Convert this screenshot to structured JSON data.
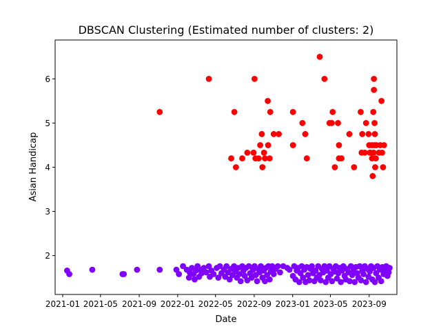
{
  "chart_data": {
    "type": "scatter",
    "title": "DBSCAN Clustering (Estimated number of clusters: 2)",
    "xlabel": "Date",
    "ylabel": "Asian Handicap",
    "xlim": [
      "2020-12-08",
      "2023-11-28"
    ],
    "ylim": [
      1.12,
      6.88
    ],
    "grid": false,
    "x_ticks": [
      "2021-01",
      "2021-05",
      "2021-09",
      "2022-01",
      "2022-05",
      "2022-09",
      "2023-01",
      "2023-05",
      "2023-09"
    ],
    "y_ticks": [
      2,
      3,
      4,
      5,
      6
    ],
    "colors": {
      "cluster_0": "#8000ff",
      "cluster_1": "#ff0000"
    },
    "series": [
      {
        "color": "#8000ff",
        "points": [
          [
            "2021-01-15",
            1.66
          ],
          [
            "2021-01-22",
            1.58
          ],
          [
            "2021-04-05",
            1.68
          ],
          [
            "2021-07-10",
            1.58
          ],
          [
            "2021-07-14",
            1.58
          ],
          [
            "2021-08-25",
            1.68
          ],
          [
            "2021-11-05",
            1.68
          ],
          [
            "2021-12-28",
            1.68
          ],
          [
            "2022-01-05",
            1.58
          ],
          [
            "2022-01-18",
            1.76
          ],
          [
            "2022-01-30",
            1.68
          ],
          [
            "2022-02-06",
            1.5
          ],
          [
            "2022-02-08",
            1.62
          ],
          [
            "2022-02-15",
            1.72
          ],
          [
            "2022-02-20",
            1.58
          ],
          [
            "2022-02-24",
            1.46
          ],
          [
            "2022-02-28",
            1.66
          ],
          [
            "2022-03-05",
            1.76
          ],
          [
            "2022-03-10",
            1.52
          ],
          [
            "2022-03-15",
            1.68
          ],
          [
            "2022-03-18",
            1.6
          ],
          [
            "2022-03-25",
            1.72
          ],
          [
            "2022-04-02",
            1.62
          ],
          [
            "2022-04-10",
            1.76
          ],
          [
            "2022-04-13",
            1.52
          ],
          [
            "2022-04-18",
            1.66
          ],
          [
            "2022-04-25",
            1.58
          ],
          [
            "2022-05-05",
            1.72
          ],
          [
            "2022-05-10",
            1.5
          ],
          [
            "2022-05-15",
            1.76
          ],
          [
            "2022-05-20",
            1.6
          ],
          [
            "2022-05-28",
            1.68
          ],
          [
            "2022-06-01",
            1.52
          ],
          [
            "2022-06-05",
            1.76
          ],
          [
            "2022-06-10",
            1.62
          ],
          [
            "2022-06-15",
            1.46
          ],
          [
            "2022-06-20",
            1.7
          ],
          [
            "2022-06-24",
            1.56
          ],
          [
            "2022-06-29",
            1.76
          ],
          [
            "2022-07-03",
            1.64
          ],
          [
            "2022-07-08",
            1.5
          ],
          [
            "2022-07-12",
            1.72
          ],
          [
            "2022-07-16",
            1.58
          ],
          [
            "2022-07-20",
            1.42
          ],
          [
            "2022-07-25",
            1.76
          ],
          [
            "2022-07-29",
            1.66
          ],
          [
            "2022-08-02",
            1.54
          ],
          [
            "2022-08-06",
            1.72
          ],
          [
            "2022-08-10",
            1.44
          ],
          [
            "2022-08-15",
            1.76
          ],
          [
            "2022-08-19",
            1.6
          ],
          [
            "2022-08-24",
            1.5
          ],
          [
            "2022-08-28",
            1.68
          ],
          [
            "2022-09-02",
            1.76
          ],
          [
            "2022-09-06",
            1.56
          ],
          [
            "2022-09-10",
            1.42
          ],
          [
            "2022-09-14",
            1.7
          ],
          [
            "2022-09-18",
            1.62
          ],
          [
            "2022-09-22",
            1.76
          ],
          [
            "2022-09-27",
            1.5
          ],
          [
            "2022-10-01",
            1.66
          ],
          [
            "2022-10-05",
            1.42
          ],
          [
            "2022-10-08",
            1.72
          ],
          [
            "2022-10-12",
            1.56
          ],
          [
            "2022-10-16",
            1.76
          ],
          [
            "2022-10-20",
            1.46
          ],
          [
            "2022-10-24",
            1.64
          ],
          [
            "2022-10-28",
            1.76
          ],
          [
            "2022-11-02",
            1.58
          ],
          [
            "2022-11-08",
            1.7
          ],
          [
            "2022-11-15",
            1.76
          ],
          [
            "2022-11-22",
            1.62
          ],
          [
            "2022-12-02",
            1.76
          ],
          [
            "2022-12-15",
            1.72
          ],
          [
            "2022-12-22",
            1.68
          ],
          [
            "2023-01-02",
            1.54
          ],
          [
            "2023-01-06",
            1.76
          ],
          [
            "2023-01-10",
            1.46
          ],
          [
            "2023-01-14",
            1.66
          ],
          [
            "2023-01-18",
            1.72
          ],
          [
            "2023-01-22",
            1.4
          ],
          [
            "2023-01-26",
            1.6
          ],
          [
            "2023-01-30",
            1.76
          ],
          [
            "2023-02-03",
            1.5
          ],
          [
            "2023-02-07",
            1.68
          ],
          [
            "2023-02-11",
            1.4
          ],
          [
            "2023-02-15",
            1.74
          ],
          [
            "2023-02-19",
            1.56
          ],
          [
            "2023-02-23",
            1.44
          ],
          [
            "2023-02-27",
            1.7
          ],
          [
            "2023-03-03",
            1.76
          ],
          [
            "2023-03-07",
            1.6
          ],
          [
            "2023-03-11",
            1.42
          ],
          [
            "2023-03-15",
            1.66
          ],
          [
            "2023-03-19",
            1.5
          ],
          [
            "2023-03-23",
            1.76
          ],
          [
            "2023-03-27",
            1.56
          ],
          [
            "2023-03-31",
            1.44
          ],
          [
            "2023-04-04",
            1.7
          ],
          [
            "2023-04-08",
            1.62
          ],
          [
            "2023-04-12",
            1.76
          ],
          [
            "2023-04-16",
            1.4
          ],
          [
            "2023-04-20",
            1.66
          ],
          [
            "2023-04-24",
            1.5
          ],
          [
            "2023-04-28",
            1.76
          ],
          [
            "2023-05-02",
            1.58
          ],
          [
            "2023-05-06",
            1.42
          ],
          [
            "2023-05-10",
            1.7
          ],
          [
            "2023-05-14",
            1.64
          ],
          [
            "2023-05-18",
            1.76
          ],
          [
            "2023-05-22",
            1.48
          ],
          [
            "2023-05-26",
            1.6
          ],
          [
            "2023-05-30",
            1.72
          ],
          [
            "2023-06-03",
            1.4
          ],
          [
            "2023-06-07",
            1.66
          ],
          [
            "2023-06-11",
            1.76
          ],
          [
            "2023-06-15",
            1.54
          ],
          [
            "2023-06-19",
            1.46
          ],
          [
            "2023-06-23",
            1.7
          ],
          [
            "2023-06-27",
            1.62
          ],
          [
            "2023-07-01",
            1.42
          ],
          [
            "2023-07-05",
            1.76
          ],
          [
            "2023-07-09",
            1.56
          ],
          [
            "2023-07-13",
            1.68
          ],
          [
            "2023-07-17",
            1.4
          ],
          [
            "2023-07-21",
            1.74
          ],
          [
            "2023-07-25",
            1.6
          ],
          [
            "2023-07-29",
            1.5
          ],
          [
            "2023-08-02",
            1.76
          ],
          [
            "2023-08-06",
            1.44
          ],
          [
            "2023-08-10",
            1.66
          ],
          [
            "2023-08-14",
            1.58
          ],
          [
            "2023-08-18",
            1.76
          ],
          [
            "2023-08-22",
            1.4
          ],
          [
            "2023-08-26",
            1.7
          ],
          [
            "2023-08-30",
            1.52
          ],
          [
            "2023-09-03",
            1.64
          ],
          [
            "2023-09-07",
            1.76
          ],
          [
            "2023-09-11",
            1.46
          ],
          [
            "2023-09-15",
            1.72
          ],
          [
            "2023-09-19",
            1.4
          ],
          [
            "2023-09-23",
            1.6
          ],
          [
            "2023-09-27",
            1.76
          ],
          [
            "2023-10-01",
            1.5
          ],
          [
            "2023-10-05",
            1.68
          ],
          [
            "2023-10-09",
            1.42
          ],
          [
            "2023-10-13",
            1.74
          ],
          [
            "2023-10-17",
            1.58
          ],
          [
            "2023-10-21",
            1.66
          ],
          [
            "2023-10-25",
            1.76
          ],
          [
            "2023-10-29",
            1.54
          ],
          [
            "2023-11-02",
            1.62
          ],
          [
            "2023-11-05",
            1.72
          ]
        ]
      },
      {
        "color": "#ff0000",
        "points": [
          [
            "2021-11-05",
            5.25
          ],
          [
            "2022-04-10",
            6.0
          ],
          [
            "2022-06-20",
            4.2
          ],
          [
            "2022-06-30",
            5.25
          ],
          [
            "2022-07-05",
            4.0
          ],
          [
            "2022-07-25",
            4.2
          ],
          [
            "2022-08-10",
            4.33
          ],
          [
            "2022-08-30",
            4.33
          ],
          [
            "2022-09-02",
            6.0
          ],
          [
            "2022-09-05",
            4.2
          ],
          [
            "2022-09-15",
            4.2
          ],
          [
            "2022-09-20",
            4.5
          ],
          [
            "2022-09-25",
            4.75
          ],
          [
            "2022-09-27",
            4.0
          ],
          [
            "2022-10-02",
            4.33
          ],
          [
            "2022-10-05",
            4.2
          ],
          [
            "2022-10-14",
            5.5
          ],
          [
            "2022-10-15",
            4.5
          ],
          [
            "2022-10-20",
            4.2
          ],
          [
            "2022-10-22",
            5.25
          ],
          [
            "2022-11-02",
            4.75
          ],
          [
            "2022-11-18",
            4.75
          ],
          [
            "2023-01-02",
            5.25
          ],
          [
            "2023-01-02",
            4.5
          ],
          [
            "2023-02-01",
            5.0
          ],
          [
            "2023-02-10",
            4.75
          ],
          [
            "2023-02-15",
            4.2
          ],
          [
            "2023-03-28",
            6.5
          ],
          [
            "2023-04-12",
            6.0
          ],
          [
            "2023-04-28",
            5.0
          ],
          [
            "2023-05-05",
            5.0
          ],
          [
            "2023-05-08",
            5.25
          ],
          [
            "2023-05-15",
            4.0
          ],
          [
            "2023-05-25",
            5.0
          ],
          [
            "2023-05-28",
            4.5
          ],
          [
            "2023-05-28",
            4.2
          ],
          [
            "2023-06-05",
            4.2
          ],
          [
            "2023-06-30",
            4.75
          ],
          [
            "2023-07-15",
            4.0
          ],
          [
            "2023-08-05",
            5.25
          ],
          [
            "2023-08-08",
            4.33
          ],
          [
            "2023-08-10",
            4.75
          ],
          [
            "2023-08-18",
            4.33
          ],
          [
            "2023-08-22",
            5.0
          ],
          [
            "2023-08-30",
            4.75
          ],
          [
            "2023-09-01",
            4.5
          ],
          [
            "2023-09-03",
            4.33
          ],
          [
            "2023-09-05",
            4.33
          ],
          [
            "2023-09-10",
            4.2
          ],
          [
            "2023-09-10",
            4.5
          ],
          [
            "2023-09-12",
            3.8
          ],
          [
            "2023-09-14",
            5.25
          ],
          [
            "2023-09-15",
            4.33
          ],
          [
            "2023-09-16",
            6.0
          ],
          [
            "2023-09-16",
            5.75
          ],
          [
            "2023-09-18",
            5.0
          ],
          [
            "2023-09-18",
            4.5
          ],
          [
            "2023-09-19",
            4.75
          ],
          [
            "2023-09-20",
            4.0
          ],
          [
            "2023-09-22",
            4.2
          ],
          [
            "2023-09-24",
            4.5
          ],
          [
            "2023-10-02",
            4.33
          ],
          [
            "2023-10-06",
            4.5
          ],
          [
            "2023-10-10",
            5.5
          ],
          [
            "2023-10-12",
            4.33
          ],
          [
            "2023-10-15",
            4.0
          ],
          [
            "2023-10-18",
            4.5
          ]
        ]
      }
    ]
  }
}
